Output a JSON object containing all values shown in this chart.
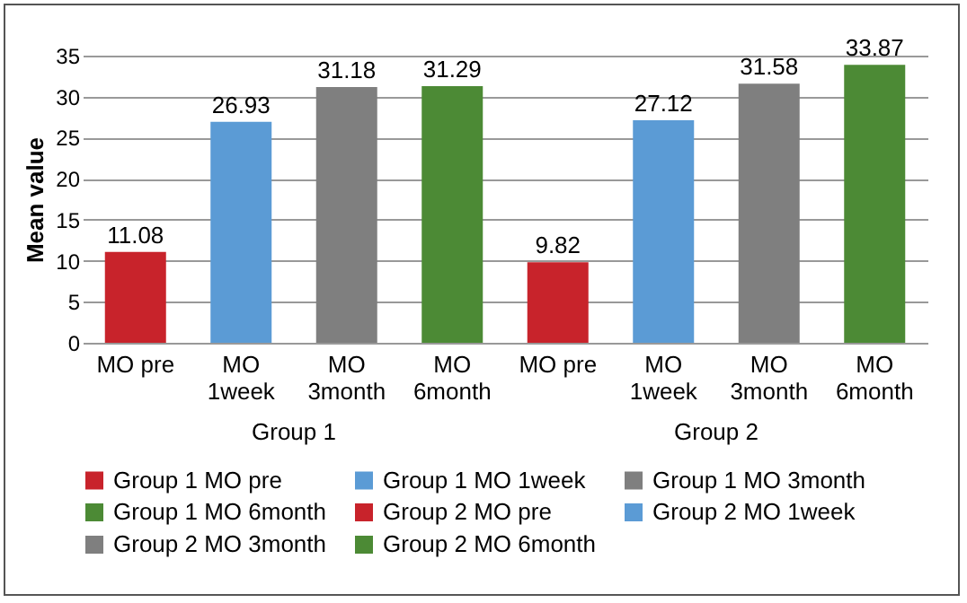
{
  "chart_data": {
    "type": "bar",
    "ylabel": "Mean value",
    "categories": [
      "MO pre",
      "MO 1week",
      "MO 3month",
      "MO 6month",
      "MO pre",
      "MO 1week",
      "MO 3month",
      "MO 6month"
    ],
    "series": [
      {
        "name": "Group 1 MO pre",
        "color": "#c8232b",
        "values": [
          11.08,
          null,
          null,
          null,
          null,
          null,
          null,
          null
        ]
      },
      {
        "name": "Group 1 MO 1week",
        "color": "#5b9bd5",
        "values": [
          null,
          26.93,
          null,
          null,
          null,
          null,
          null,
          null
        ]
      },
      {
        "name": "Group 1 MO 3month",
        "color": "#7f7f7f",
        "values": [
          null,
          null,
          31.18,
          null,
          null,
          null,
          null,
          null
        ]
      },
      {
        "name": "Group 1 MO 6month",
        "color": "#4c8a35",
        "values": [
          null,
          null,
          null,
          31.29,
          null,
          null,
          null,
          null
        ]
      },
      {
        "name": "Group 2 MO pre",
        "color": "#c8232b",
        "values": [
          null,
          null,
          null,
          null,
          9.82,
          null,
          null,
          null
        ]
      },
      {
        "name": "Group 2 MO 1week",
        "color": "#5b9bd5",
        "values": [
          null,
          null,
          null,
          null,
          null,
          27.12,
          null,
          null
        ]
      },
      {
        "name": "Group 2 MO 3month",
        "color": "#7f7f7f",
        "values": [
          null,
          null,
          null,
          null,
          null,
          null,
          31.58,
          null
        ]
      },
      {
        "name": "Group 2 MO 6month",
        "color": "#4c8a35",
        "values": [
          null,
          null,
          null,
          null,
          null,
          null,
          null,
          33.87
        ]
      }
    ],
    "annotations": [
      "Group 1",
      "Group 2"
    ],
    "ylim": [
      0,
      35
    ],
    "yticks": [
      0,
      5,
      10,
      15,
      20,
      25,
      30,
      35
    ],
    "grid": "y",
    "data_labels": true,
    "legend": "bottom"
  }
}
